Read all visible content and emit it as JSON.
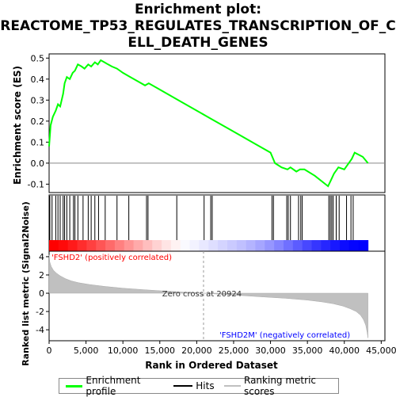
{
  "chart_data": {
    "type": "line",
    "title": "Enrichment plot: REACTOME_TP53_REGULATES_TRANSCRIPTION_OF_CELL_DEATH_GENES",
    "title_lines": [
      "Enrichment plot:",
      "REACTOME_TP53_REGULATES_TRANSCRIPTION_OF_C",
      "ELL_DEATH_GENES"
    ],
    "top_panel": {
      "ylabel": "Enrichment score (ES)",
      "ylim": [
        -0.14,
        0.52
      ],
      "yticks": [
        -0.1,
        0.0,
        0.1,
        0.2,
        0.3,
        0.4,
        0.5
      ],
      "ytick_labels": [
        "-0.1",
        "0.0",
        "0.1",
        "0.2",
        "0.3",
        "0.4",
        "0.5"
      ],
      "grid": false,
      "series": [
        {
          "name": "Enrichment profile",
          "color": "#00ff00",
          "x": [
            0,
            200,
            500,
            900,
            1200,
            1500,
            1900,
            2100,
            2400,
            2800,
            3200,
            3500,
            3900,
            4400,
            4800,
            5300,
            5700,
            6200,
            6600,
            7000,
            7500,
            8000,
            8500,
            9200,
            10000,
            11000,
            12000,
            13000,
            13500,
            14500,
            16000,
            18000,
            20000,
            22000,
            24000,
            26000,
            28000,
            30000,
            30600,
            31500,
            32300,
            32700,
            33500,
            34000,
            34600,
            36000,
            37800,
            38200,
            38600,
            39200,
            40000,
            40600,
            41000,
            41400,
            42500,
            43200
          ],
          "y": [
            0.08,
            0.18,
            0.22,
            0.25,
            0.28,
            0.27,
            0.33,
            0.38,
            0.41,
            0.4,
            0.43,
            0.44,
            0.47,
            0.46,
            0.45,
            0.47,
            0.46,
            0.48,
            0.47,
            0.49,
            0.48,
            0.47,
            0.46,
            0.45,
            0.43,
            0.41,
            0.39,
            0.37,
            0.38,
            0.36,
            0.33,
            0.29,
            0.25,
            0.21,
            0.17,
            0.13,
            0.09,
            0.05,
            0.0,
            -0.02,
            -0.03,
            -0.02,
            -0.04,
            -0.03,
            -0.03,
            -0.06,
            -0.11,
            -0.08,
            -0.05,
            -0.02,
            -0.03,
            0.0,
            0.02,
            0.05,
            0.03,
            0.0
          ]
        }
      ]
    },
    "hits_panel": {
      "hit_positions": [
        100,
        400,
        900,
        1200,
        1500,
        1900,
        2100,
        2400,
        2800,
        3300,
        3500,
        3900,
        4600,
        5300,
        5700,
        6200,
        6700,
        7600,
        9200,
        10800,
        13200,
        13400,
        17300,
        21000,
        21900,
        22100,
        30200,
        30400,
        32200,
        32400,
        32700,
        33800,
        34100,
        34300,
        37900,
        38100,
        38300,
        38500,
        38900,
        39300,
        40300,
        40900,
        41200
      ],
      "color_bar": {
        "n_bins": 34,
        "colors": [
          "#ff0000",
          "#ff0a0a",
          "#ff1a1a",
          "#ff2d2d",
          "#ff4040",
          "#ff5555",
          "#ff6a6a",
          "#ff8080",
          "#ff9595",
          "#ffaaaa",
          "#ffbebe",
          "#ffd2d2",
          "#ffe4e4",
          "#fff2f2",
          "#fafaff",
          "#f2f2ff",
          "#e8e8ff",
          "#dedeff",
          "#d4d4ff",
          "#cacaff",
          "#c0c0ff",
          "#b4b4ff",
          "#a6a6ff",
          "#9696ff",
          "#8484ff",
          "#7070ff",
          "#5c5cff",
          "#4848ff",
          "#3636ff",
          "#2626ff",
          "#1818ff",
          "#0c0cff",
          "#0404ff",
          "#0000ff"
        ]
      }
    },
    "bottom_panel": {
      "ylabel": "Ranked list metric (Signal2Noise)",
      "xlabel": "Rank in Ordered Dataset",
      "ylim": [
        -5.2,
        4.6
      ],
      "yticks": [
        -4,
        -2,
        0,
        2,
        4
      ],
      "ytick_labels": [
        "-4",
        "-2",
        "0",
        "2",
        "4"
      ],
      "xlim": [
        0,
        43200
      ],
      "xticks": [
        0,
        5000,
        10000,
        15000,
        20000,
        25000,
        30000,
        35000,
        40000,
        45000
      ],
      "xtick_labels": [
        "0",
        "5,000",
        "10,000",
        "15,000",
        "20,000",
        "25,000",
        "30,000",
        "35,000",
        "40,000",
        "45,000"
      ],
      "metric_curve": {
        "x": [
          0,
          100,
          300,
          600,
          1000,
          1500,
          2200,
          3000,
          4000,
          5500,
          7500,
          10000,
          13000,
          16000,
          19000,
          20924,
          23000,
          26000,
          29000,
          32000,
          35000,
          37000,
          38500,
          39800,
          40800,
          41600,
          42200,
          42600,
          42900,
          43100,
          43200
        ],
        "y": [
          4.2,
          3.4,
          2.9,
          2.5,
          2.2,
          1.9,
          1.6,
          1.35,
          1.15,
          0.95,
          0.75,
          0.55,
          0.38,
          0.22,
          0.08,
          0.0,
          -0.1,
          -0.25,
          -0.4,
          -0.55,
          -0.75,
          -0.95,
          -1.15,
          -1.4,
          -1.7,
          -2.0,
          -2.4,
          -2.9,
          -3.5,
          -4.3,
          -4.9
        ]
      },
      "annotations": {
        "pos_label": "'FSHD2' (positively correlated)",
        "pos_color": "#ff0000",
        "neg_label": "'FSHD2M' (negatively correlated)",
        "neg_color": "#0000ff",
        "zero_cross_label": "Zero cross at 20924",
        "zero_cross_x": 20924
      }
    },
    "legend": {
      "entries": [
        {
          "label": "Enrichment profile",
          "color": "#00ff00"
        },
        {
          "label": "Hits",
          "color": "#000000"
        },
        {
          "label": "Ranking metric scores",
          "color": "#c0c0c0"
        }
      ]
    }
  }
}
